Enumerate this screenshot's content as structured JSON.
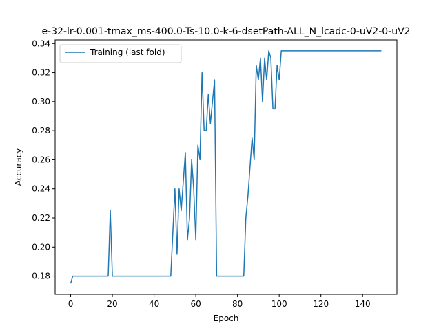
{
  "chart_data": {
    "type": "line",
    "title": "e-32-lr-0.001-tmax_ms-400.0-Ts-10.0-k-6-dsetPath-ALL_N_lcadc-0-uV2-0-uV2",
    "xlabel": "Epoch",
    "ylabel": "Accuracy",
    "xlim": [
      -7.45,
      156.45
    ],
    "ylim": [
      0.1675,
      0.3425
    ],
    "xticks": [
      0,
      20,
      40,
      60,
      80,
      100,
      120,
      140
    ],
    "xtick_labels": [
      "0",
      "20",
      "40",
      "60",
      "80",
      "100",
      "120",
      "140"
    ],
    "yticks": [
      0.18,
      0.2,
      0.22,
      0.24,
      0.26,
      0.28,
      0.3,
      0.32,
      0.34
    ],
    "ytick_labels": [
      "0.18",
      "0.20",
      "0.22",
      "0.24",
      "0.26",
      "0.28",
      "0.30",
      "0.32",
      "0.34"
    ],
    "grid": false,
    "legend_position": "upper-left",
    "series": [
      {
        "name": "Training (last fold)",
        "color": "#1f77b4",
        "x": [
          0,
          1,
          2,
          18,
          19,
          20,
          21,
          48,
          49,
          50,
          51,
          52,
          53,
          54,
          55,
          56,
          57,
          58,
          59,
          60,
          61,
          62,
          63,
          64,
          65,
          66,
          67,
          68,
          69,
          70,
          83,
          84,
          85,
          86,
          87,
          88,
          89,
          90,
          91,
          92,
          93,
          94,
          95,
          96,
          97,
          98,
          99,
          100,
          101,
          149
        ],
        "y": [
          0.175,
          0.18,
          0.18,
          0.18,
          0.225,
          0.18,
          0.18,
          0.18,
          0.21,
          0.24,
          0.195,
          0.24,
          0.225,
          0.245,
          0.265,
          0.205,
          0.22,
          0.26,
          0.24,
          0.205,
          0.27,
          0.26,
          0.32,
          0.28,
          0.28,
          0.305,
          0.285,
          0.3,
          0.315,
          0.18,
          0.18,
          0.22,
          0.235,
          0.255,
          0.275,
          0.26,
          0.325,
          0.315,
          0.33,
          0.3,
          0.33,
          0.315,
          0.335,
          0.33,
          0.295,
          0.295,
          0.325,
          0.315,
          0.335,
          0.335
        ]
      }
    ]
  }
}
